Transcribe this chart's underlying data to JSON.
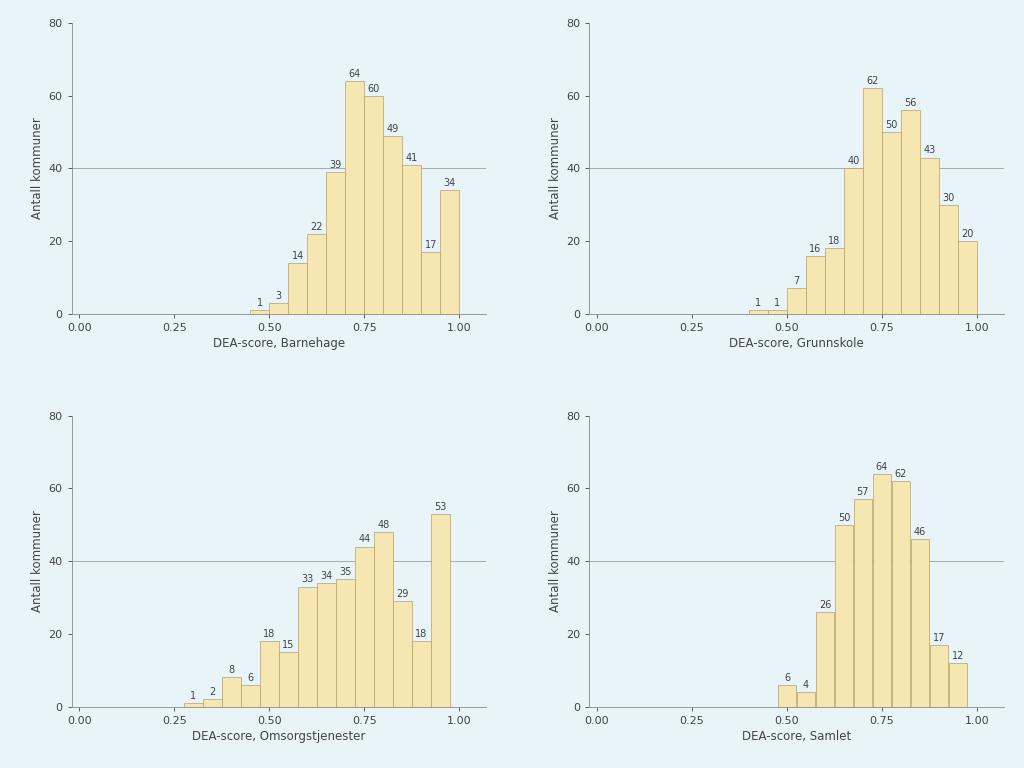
{
  "panels": [
    {
      "xlabel": "DEA-score, Barnehage",
      "bin_left": [
        0.45,
        0.5,
        0.55,
        0.6,
        0.65,
        0.7,
        0.75,
        0.8,
        0.85,
        0.9,
        0.95
      ],
      "bin_width": 0.05,
      "values": [
        1,
        3,
        14,
        22,
        39,
        64,
        60,
        49,
        41,
        17,
        34
      ],
      "xlim": [
        -0.02,
        1.07
      ],
      "ylim": [
        0,
        80
      ],
      "xticks": [
        0.0,
        0.25,
        0.5,
        0.75,
        1.0
      ],
      "yticks": [
        0,
        20,
        40,
        60,
        80
      ]
    },
    {
      "xlabel": "DEA-score, Grunnskole",
      "bin_left": [
        0.4,
        0.45,
        0.5,
        0.55,
        0.6,
        0.65,
        0.7,
        0.75,
        0.8,
        0.85,
        0.9,
        0.95
      ],
      "bin_width": 0.05,
      "values": [
        1,
        1,
        7,
        16,
        18,
        40,
        62,
        50,
        56,
        43,
        30,
        20
      ],
      "xlim": [
        -0.02,
        1.07
      ],
      "ylim": [
        0,
        80
      ],
      "xticks": [
        0.0,
        0.25,
        0.5,
        0.75,
        1.0
      ],
      "yticks": [
        0,
        20,
        40,
        60,
        80
      ]
    },
    {
      "xlabel": "DEA-score, Omsorgstjenester",
      "bin_left": [
        0.275,
        0.325,
        0.375,
        0.425,
        0.475,
        0.525,
        0.575,
        0.625,
        0.675,
        0.725,
        0.775,
        0.825,
        0.875,
        0.925
      ],
      "bin_width": 0.05,
      "values": [
        1,
        2,
        8,
        6,
        18,
        15,
        33,
        34,
        35,
        44,
        48,
        29,
        18,
        53
      ],
      "xlim": [
        -0.02,
        1.07
      ],
      "ylim": [
        0,
        80
      ],
      "xticks": [
        0.0,
        0.25,
        0.5,
        0.75,
        1.0
      ],
      "yticks": [
        0,
        20,
        40,
        60,
        80
      ]
    },
    {
      "xlabel": "DEA-score, Samlet",
      "bin_left": [
        0.475,
        0.525,
        0.575,
        0.625,
        0.675,
        0.725,
        0.775,
        0.825,
        0.875,
        0.925
      ],
      "bin_width": 0.05,
      "values": [
        6,
        4,
        26,
        50,
        57,
        64,
        62,
        46,
        17,
        12
      ],
      "xlim": [
        -0.02,
        1.07
      ],
      "ylim": [
        0,
        80
      ],
      "xticks": [
        0.0,
        0.25,
        0.5,
        0.75,
        1.0
      ],
      "yticks": [
        0,
        20,
        40,
        60,
        80
      ]
    }
  ],
  "bar_color": "#F5E6B2",
  "bar_edgecolor": "#B8A060",
  "background_color": "#E8F4F8",
  "ylabel": "Antall kommuner",
  "annotation_fontsize": 7,
  "xlabel_fontsize": 8.5,
  "ylabel_fontsize": 8.5,
  "tick_fontsize": 8
}
